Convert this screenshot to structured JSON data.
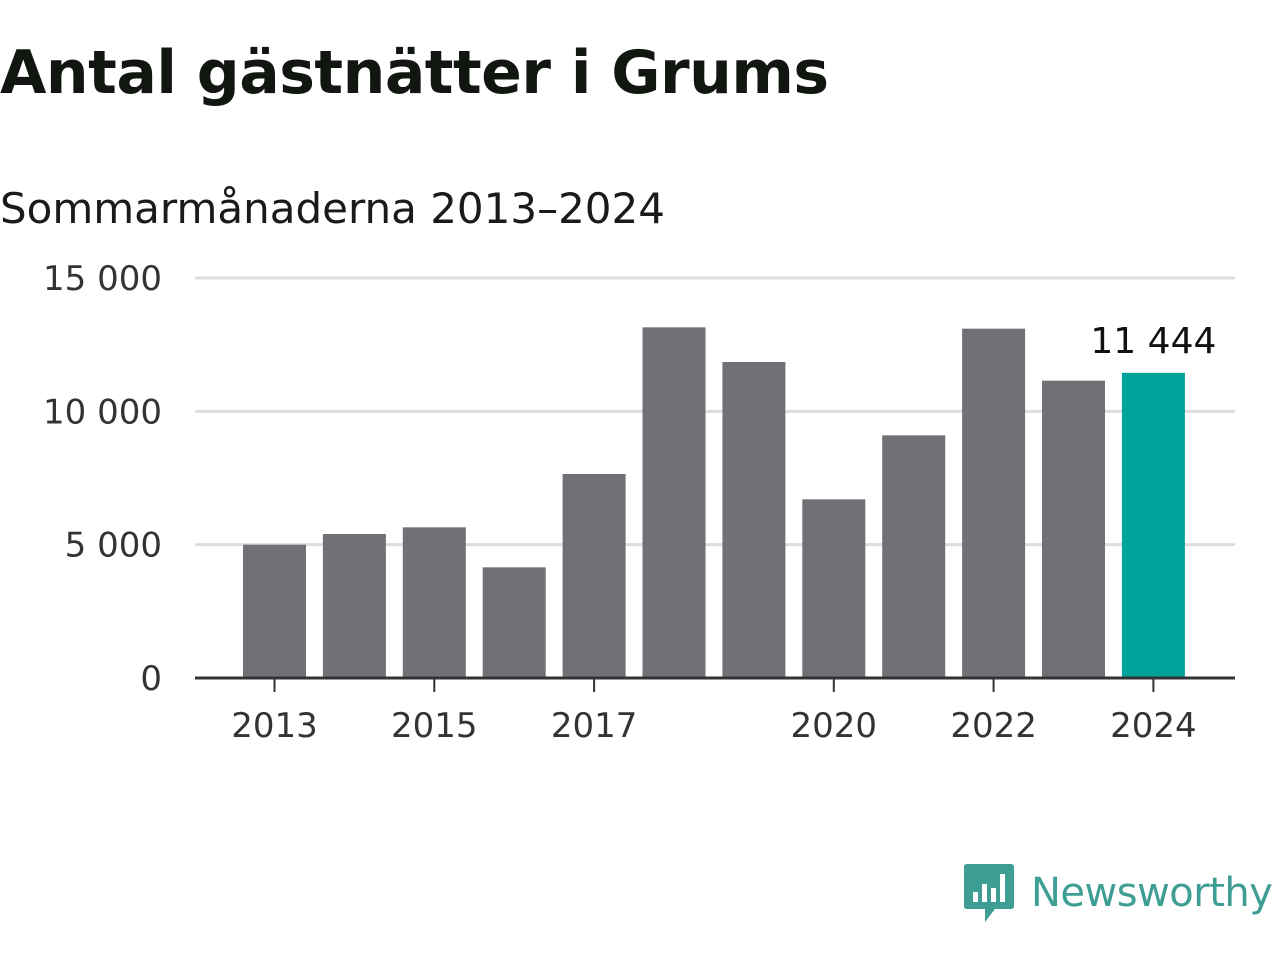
{
  "header": {
    "title": "Antal gästnätter i Grums",
    "subtitle": "Sommarmånaderna 2013–2024"
  },
  "colors": {
    "bar": "#717076",
    "highlight": "#00a39a",
    "grid": "#dddddd",
    "axis": "#333333",
    "brand": "#3e9e94"
  },
  "brand": {
    "name": "Newsworthy",
    "icon": "newsworthy-logo-icon"
  },
  "chart_data": {
    "type": "bar",
    "title": "Antal gästnätter i Grums",
    "subtitle": "Sommarmånaderna 2013–2024",
    "xlabel": "",
    "ylabel": "",
    "categories": [
      "2013",
      "2014",
      "2015",
      "2016",
      "2017",
      "2018",
      "2019",
      "2020",
      "2021",
      "2022",
      "2023",
      "2024"
    ],
    "values": [
      5000,
      5400,
      5650,
      4150,
      7650,
      13150,
      11850,
      6700,
      9100,
      13100,
      11150,
      11444
    ],
    "highlight_index": 11,
    "data_labels": [
      {
        "index": 11,
        "text": "11 444"
      }
    ],
    "x_tick_labels": [
      "2013",
      "",
      "2015",
      "",
      "2017",
      "",
      "",
      "2020",
      "",
      "2022",
      "",
      "2024"
    ],
    "y_ticks": [
      {
        "value": 0,
        "label": "0"
      },
      {
        "value": 5000,
        "label": "5 000"
      },
      {
        "value": 10000,
        "label": "10 000"
      },
      {
        "value": 15000,
        "label": "15 000"
      }
    ],
    "ylim": [
      0,
      15000
    ],
    "grid": true,
    "legend": "none"
  }
}
